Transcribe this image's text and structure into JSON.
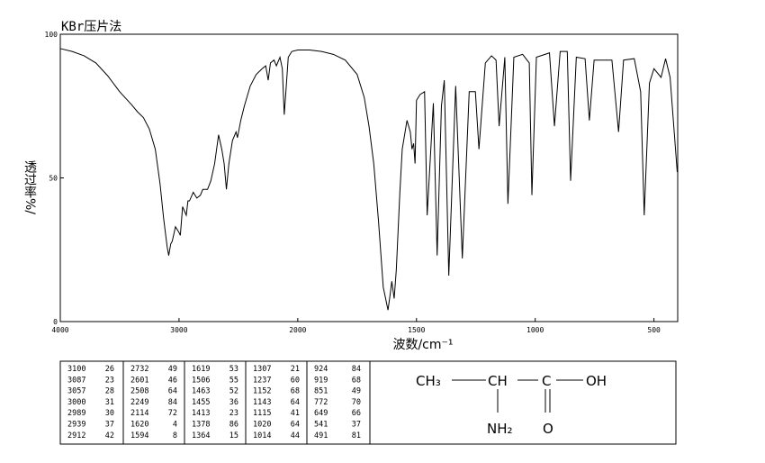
{
  "chart_data": {
    "type": "line",
    "title": "KBr压片法",
    "x_label": "波数/cm⁻¹",
    "y_label": "透过率%/",
    "x": [
      4000,
      3900,
      3800,
      3700,
      3600,
      3500,
      3400,
      3350,
      3300,
      3250,
      3200,
      3160,
      3130,
      3100,
      3087,
      3070,
      3057,
      3030,
      3000,
      2989,
      2970,
      2939,
      2925,
      2912,
      2880,
      2850,
      2820,
      2800,
      2760,
      2732,
      2700,
      2667,
      2640,
      2620,
      2601,
      2580,
      2550,
      2520,
      2508,
      2480,
      2450,
      2400,
      2350,
      2300,
      2270,
      2249,
      2230,
      2200,
      2180,
      2150,
      2130,
      2114,
      2100,
      2080,
      2050,
      2000,
      1950,
      1900,
      1850,
      1800,
      1750,
      1720,
      1700,
      1680,
      1660,
      1640,
      1630,
      1620,
      1610,
      1604,
      1594,
      1585,
      1570,
      1560,
      1540,
      1526,
      1519,
      1512,
      1506,
      1500,
      1485,
      1466,
      1455,
      1429,
      1413,
      1395,
      1383,
      1364,
      1335,
      1307,
      1278,
      1252,
      1237,
      1210,
      1184,
      1165,
      1152,
      1128,
      1115,
      1090,
      1053,
      1025,
      1014,
      995,
      940,
      919,
      895,
      865,
      851,
      827,
      790,
      772,
      752,
      677,
      649,
      628,
      583,
      556,
      541,
      519,
      500,
      470,
      451,
      432,
      402
    ],
    "values": [
      95,
      94,
      92.5,
      90,
      85.5,
      80,
      75.5,
      73,
      71,
      67,
      60,
      48,
      36,
      26,
      23,
      27,
      28,
      33,
      31,
      30,
      40,
      37,
      42,
      42,
      45,
      43,
      44,
      46,
      46,
      49,
      55,
      65,
      60,
      55,
      46,
      55,
      63,
      66,
      64,
      70,
      75,
      82,
      86,
      88,
      89,
      84,
      90,
      91,
      89,
      92,
      88,
      72,
      80,
      92,
      94,
      94.5,
      94.5,
      94,
      93,
      91,
      86,
      78,
      68,
      55,
      35,
      12,
      8,
      4,
      10,
      14,
      8,
      18,
      45,
      60,
      70,
      66,
      60,
      62,
      55,
      77,
      79,
      80,
      37,
      76,
      23,
      75,
      84,
      16,
      82,
      22,
      80,
      80,
      60,
      90,
      92.5,
      91,
      68,
      92,
      41,
      92,
      93,
      90,
      44,
      92,
      93.5,
      68,
      94,
      94,
      49,
      92,
      91.5,
      70,
      91,
      91,
      66,
      91,
      91.5,
      80,
      37,
      83,
      88,
      85,
      91.5,
      85,
      52
    ],
    "color": "#000000",
    "xlim": [
      4000,
      400
    ],
    "xticks": [
      4000,
      3000,
      2000,
      1500,
      1000,
      500
    ],
    "ylim": [
      0,
      100
    ],
    "yticks": [
      0,
      50,
      100
    ]
  },
  "peak_table": [
    [
      [
        3100,
        26
      ],
      [
        3087,
        23
      ],
      [
        3057,
        28
      ],
      [
        3000,
        31
      ],
      [
        2989,
        30
      ],
      [
        2939,
        37
      ],
      [
        2912,
        42
      ]
    ],
    [
      [
        2732,
        49
      ],
      [
        2601,
        46
      ],
      [
        2508,
        64
      ],
      [
        2249,
        84
      ],
      [
        2114,
        72
      ],
      [
        1620,
        4
      ],
      [
        1594,
        8
      ]
    ],
    [
      [
        1619,
        53
      ],
      [
        1506,
        55
      ],
      [
        1463,
        52
      ],
      [
        1455,
        36
      ],
      [
        1413,
        23
      ],
      [
        1378,
        86
      ],
      [
        1364,
        15
      ]
    ],
    [
      [
        1307,
        21
      ],
      [
        1237,
        60
      ],
      [
        1152,
        68
      ],
      [
        1143,
        64
      ],
      [
        1115,
        41
      ],
      [
        1020,
        64
      ],
      [
        1014,
        44
      ]
    ],
    [
      [
        924,
        84
      ],
      [
        919,
        68
      ],
      [
        851,
        49
      ],
      [
        772,
        70
      ],
      [
        649,
        66
      ],
      [
        541,
        37
      ],
      [
        491,
        81
      ]
    ]
  ],
  "structure": {
    "groups": [
      "CH₃",
      "CH",
      "C",
      "OH"
    ],
    "substituents": [
      "NH₂",
      "O"
    ]
  }
}
